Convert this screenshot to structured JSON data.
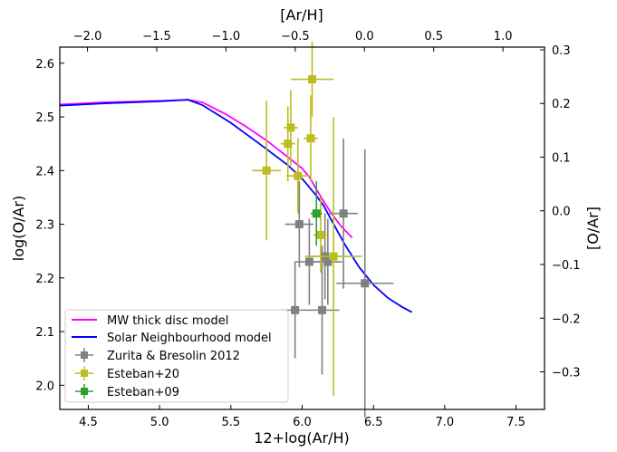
{
  "chart_data": {
    "type": "scatter",
    "xlabel": "12+log(Ar/H)",
    "ylabel": "log(O/Ar)",
    "x2label": "[Ar/H]",
    "y2label": "[O/Ar]",
    "xlim": [
      4.3,
      7.7
    ],
    "ylim": [
      1.955,
      2.63
    ],
    "x2lim": [
      -2.2,
      1.3
    ],
    "y2lim": [
      -0.37,
      0.305
    ],
    "xticks": [
      "4.5",
      "5.0",
      "5.5",
      "6.0",
      "6.5",
      "7.0",
      "7.5"
    ],
    "yticks": [
      "2.0",
      "2.1",
      "2.2",
      "2.3",
      "2.4",
      "2.5",
      "2.6"
    ],
    "x2ticks": [
      "−2.0",
      "−1.5",
      "−1.0",
      "−0.5",
      "0.0",
      "0.5",
      "1.0"
    ],
    "y2ticks": [
      "−0.3",
      "−0.2",
      "−0.1",
      "0.0",
      "0.1",
      "0.2",
      "0.3"
    ],
    "legend_position": "lower-left",
    "grid": false,
    "lines": [
      {
        "name": "MW thick disc model",
        "color": "#ff00ff",
        "x": [
          4.3,
          4.6,
          5.0,
          5.2,
          5.3,
          5.45,
          5.6,
          5.75,
          5.9,
          6.0,
          6.05,
          6.1,
          6.15,
          6.2,
          6.27,
          6.35
        ],
        "y": [
          2.523,
          2.527,
          2.53,
          2.532,
          2.527,
          2.507,
          2.483,
          2.456,
          2.425,
          2.404,
          2.388,
          2.365,
          2.343,
          2.322,
          2.297,
          2.275
        ]
      },
      {
        "name": "Solar Neighbourhood model",
        "color": "#0000ff",
        "x": [
          4.3,
          4.6,
          5.0,
          5.2,
          5.3,
          5.5,
          5.7,
          5.9,
          6.0,
          6.1,
          6.15,
          6.2,
          6.3,
          6.4,
          6.5,
          6.6,
          6.7,
          6.77
        ],
        "y": [
          2.521,
          2.525,
          2.529,
          2.532,
          2.522,
          2.489,
          2.45,
          2.41,
          2.385,
          2.353,
          2.335,
          2.31,
          2.262,
          2.22,
          2.187,
          2.163,
          2.146,
          2.136
        ]
      }
    ],
    "series": [
      {
        "name": "Zurita & Bresolin 2012",
        "color": "#808080",
        "points": [
          {
            "x": 5.98,
            "y": 2.3,
            "xerr": 0.1,
            "yerr": 0.08
          },
          {
            "x": 6.05,
            "y": 2.23,
            "xerr": 0.1,
            "yerr": 0.08
          },
          {
            "x": 6.16,
            "y": 2.24,
            "xerr": 0.1,
            "yerr": 0.08
          },
          {
            "x": 6.18,
            "y": 2.23,
            "xerr": 0.1,
            "yerr": 0.08
          },
          {
            "x": 6.29,
            "y": 2.32,
            "xerr": 0.1,
            "yerr": 0.14
          },
          {
            "x": 5.95,
            "y": 2.14,
            "xerr": 0.08,
            "yerr": 0.09
          },
          {
            "x": 6.14,
            "y": 2.14,
            "xerr": 0.12,
            "yerr": 0.12
          },
          {
            "x": 6.44,
            "y": 2.19,
            "xerr": 0.2,
            "yerr": 0.25
          }
        ]
      },
      {
        "name": "Esteban+20",
        "color": "#bcbd22",
        "points": [
          {
            "x": 5.75,
            "y": 2.4,
            "xerr": 0.1,
            "yerr": 0.13
          },
          {
            "x": 5.9,
            "y": 2.45,
            "xerr": 0.05,
            "yerr": 0.07
          },
          {
            "x": 5.92,
            "y": 2.48,
            "xerr": 0.05,
            "yerr": 0.07
          },
          {
            "x": 5.97,
            "y": 2.39,
            "xerr": 0.08,
            "yerr": 0.07
          },
          {
            "x": 6.06,
            "y": 2.46,
            "xerr": 0.05,
            "yerr": 0.08
          },
          {
            "x": 6.07,
            "y": 2.57,
            "xerr": 0.15,
            "yerr": 0.07
          },
          {
            "x": 6.13,
            "y": 2.28,
            "xerr": 0.05,
            "yerr": 0.07
          },
          {
            "x": 6.22,
            "y": 2.24,
            "xerr": 0.2,
            "yerr": 0.26
          }
        ]
      },
      {
        "name": "Esteban+09",
        "color": "#2ca02c",
        "points": [
          {
            "x": 6.1,
            "y": 2.32,
            "xerr": 0.04,
            "yerr": 0.06
          }
        ]
      }
    ]
  }
}
